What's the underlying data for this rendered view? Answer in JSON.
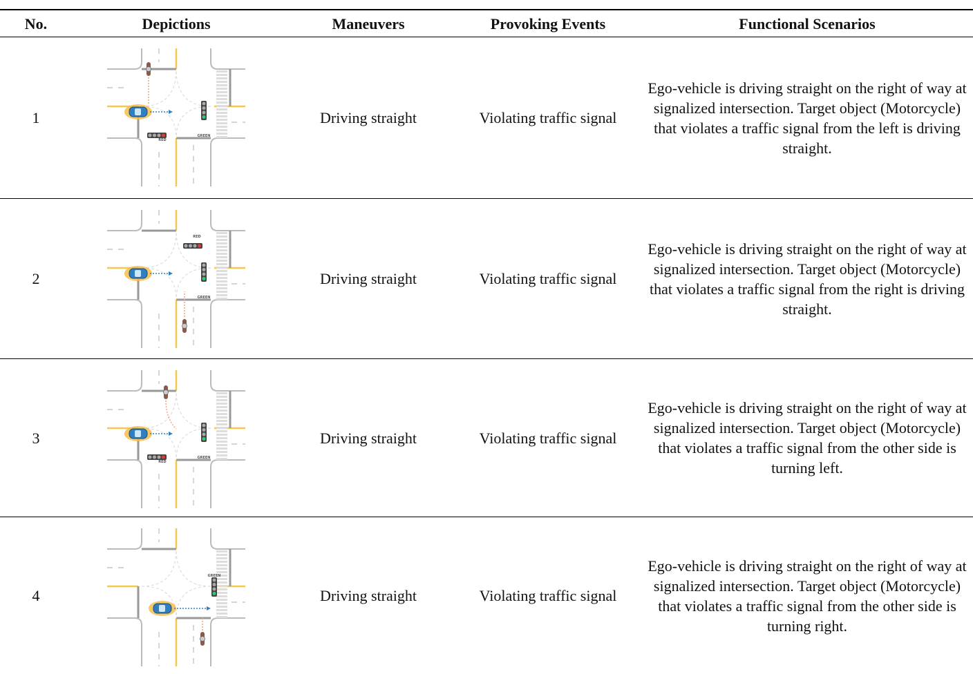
{
  "table": {
    "header": [
      "No.",
      "Depictions",
      "Maneuvers",
      "Provoking Events",
      "Functional Scenarios"
    ],
    "rows": [
      {
        "no": "1",
        "signals": [
          "RED",
          "GREEN"
        ],
        "maneuver": "Driving straight",
        "event": "Violating traffic signal",
        "scenario": "Ego-vehicle is driving straight on the right of way at signalized intersection. Target object (Motorcycle) that violates a traffic signal from the left is driving straight."
      },
      {
        "no": "2",
        "signals": [
          "RED",
          "GREEN"
        ],
        "maneuver": "Driving straight",
        "event": "Violating traffic signal",
        "scenario": "Ego-vehicle is driving straight on the right of way at signalized intersection. Target object (Motorcycle) that violates a traffic signal from the right is driving straight."
      },
      {
        "no": "3",
        "signals": [
          "RED",
          "GREEN"
        ],
        "maneuver": "Driving straight",
        "event": "Violating traffic signal",
        "scenario": "Ego-vehicle is driving straight on the right of way at signalized intersection. Target object (Motorcycle) that violates a traffic signal from the other side is turning left."
      },
      {
        "no": "4",
        "signals": [
          "GREEN"
        ],
        "maneuver": "Driving straight",
        "event": "Violating traffic signal",
        "scenario": "Ego-vehicle is driving straight on the right of way at signalized intersection. Target object (Motorcycle) that violates a traffic signal from the other side is turning right."
      }
    ]
  }
}
